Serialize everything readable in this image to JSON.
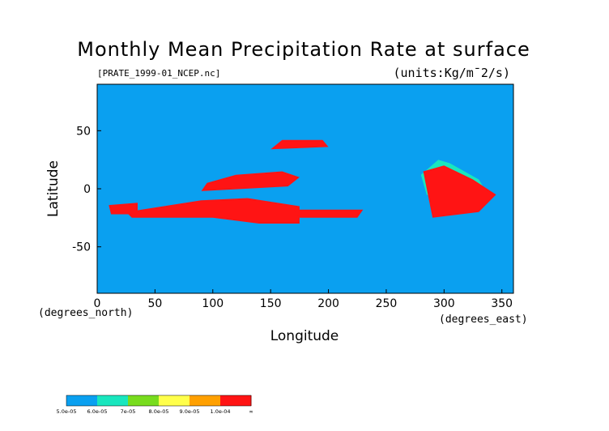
{
  "chart_data": {
    "type": "heatmap",
    "title": "Monthly Mean Precipitation Rate at surface",
    "subtitle_left": "[PRATE_1999-01_NCEP.nc]",
    "subtitle_right": "(units:Kg/m¯2/s)",
    "xlabel": "Longitude",
    "ylabel": "Latitude",
    "x_unit_label": "(degrees_east)",
    "y_unit_label": "(degrees_north)",
    "xlim": [
      0,
      360
    ],
    "ylim": [
      -90,
      90
    ],
    "x_ticks": [
      0,
      50,
      100,
      150,
      200,
      250,
      300,
      350
    ],
    "y_ticks": [
      50,
      0,
      -50
    ],
    "missing_color": "#ffffff",
    "coastline_color": "#000000",
    "colorbar": {
      "colors": [
        "#0aa0f0",
        "#19e6be",
        "#78dc1e",
        "#ffff4b",
        "#ffa000",
        "#ff1414"
      ],
      "labels": [
        "5.0e-05",
        "6.0e-05",
        "7e-05",
        "8.0e-05",
        "9.0e-05",
        "1.0e-04",
        "∞"
      ]
    },
    "regions": [
      {
        "level": 1,
        "polygon": [
          [
            295,
            -10
          ],
          [
            340,
            -8
          ],
          [
            330,
            8
          ],
          [
            305,
            22
          ],
          [
            295,
            25
          ],
          [
            280,
            12
          ],
          [
            285,
            -5
          ]
        ]
      },
      {
        "level": 5,
        "polygon": [
          [
            290,
            -25
          ],
          [
            330,
            -20
          ],
          [
            345,
            -5
          ],
          [
            325,
            8
          ],
          [
            300,
            20
          ],
          [
            282,
            15
          ],
          [
            285,
            0
          ]
        ]
      },
      {
        "level": 5,
        "polygon": [
          [
            25,
            -20
          ],
          [
            90,
            -10
          ],
          [
            130,
            -8
          ],
          [
            175,
            -15
          ],
          [
            175,
            -30
          ],
          [
            140,
            -30
          ],
          [
            100,
            -25
          ],
          [
            60,
            -25
          ],
          [
            30,
            -25
          ]
        ]
      },
      {
        "level": 5,
        "polygon": [
          [
            90,
            -2
          ],
          [
            165,
            2
          ],
          [
            175,
            10
          ],
          [
            160,
            15
          ],
          [
            120,
            12
          ],
          [
            95,
            5
          ]
        ]
      },
      {
        "level": 5,
        "polygon": [
          [
            150,
            34
          ],
          [
            200,
            36
          ],
          [
            195,
            42
          ],
          [
            160,
            42
          ]
        ]
      },
      {
        "level": 5,
        "polygon": [
          [
            170,
            -18
          ],
          [
            230,
            -18
          ],
          [
            225,
            -25
          ],
          [
            175,
            -25
          ]
        ]
      },
      {
        "level": 5,
        "polygon": [
          [
            10,
            -14
          ],
          [
            35,
            -12
          ],
          [
            35,
            -22
          ],
          [
            12,
            -22
          ]
        ]
      }
    ]
  }
}
